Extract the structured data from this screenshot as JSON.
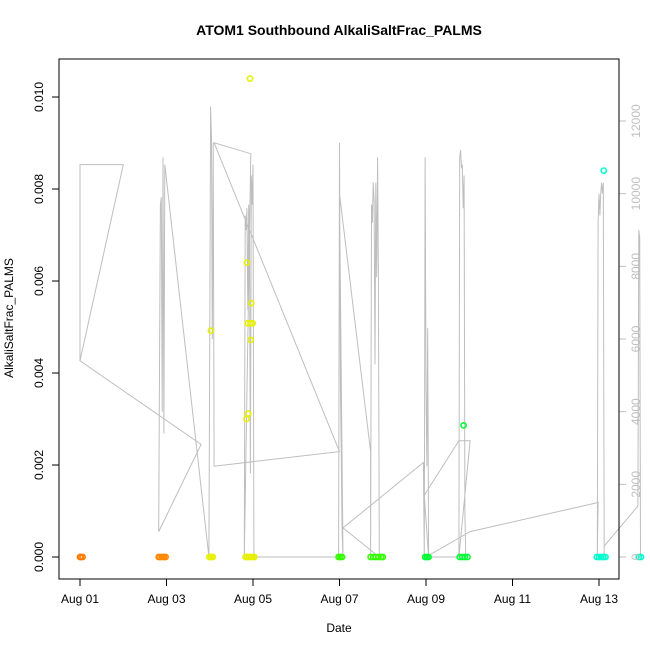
{
  "chart_data": {
    "type": "scatter",
    "title": "ATOM1 Southbound AlkaliSaltFrac_PALMS",
    "xlabel": "Date",
    "ylabel": "AlkaliSaltFrac_PALMS",
    "x_ticks": [
      "Aug 01",
      "Aug 03",
      "Aug 05",
      "Aug 07",
      "Aug 09",
      "Aug 11",
      "Aug 13"
    ],
    "y_ticks": [
      "0.000",
      "0.002",
      "0.004",
      "0.006",
      "0.008",
      "0.010"
    ],
    "y2_ticks": [
      "0",
      "2000",
      "4000",
      "6000",
      "8000",
      "10000",
      "12000"
    ],
    "xlim": [
      0.0,
      12.4
    ],
    "ylim": [
      0.0,
      0.0104
    ],
    "y2lim": [
      0,
      13000
    ],
    "grid": false,
    "colors": {
      "point_scale": [
        "#ff6600",
        "#ff8800",
        "#ffdd00",
        "#f0ff00",
        "#33ff00",
        "#00ff33",
        "#00ffcc"
      ],
      "altitude_line": "#bebebe"
    },
    "series": [
      {
        "type": "points",
        "color": "#ff7a00",
        "points": [
          [
            0.0,
            0.0
          ],
          [
            0.02,
            0.0
          ],
          [
            0.06,
            0.0
          ]
        ]
      },
      {
        "type": "points",
        "color": "#ff8800",
        "points": [
          [
            1.82,
            0.0
          ],
          [
            1.86,
            0.0
          ],
          [
            1.9,
            0.0
          ],
          [
            1.94,
            0.0
          ],
          [
            1.98,
            0.0
          ]
        ]
      },
      {
        "type": "points",
        "color": "#e6f000",
        "points": [
          [
            2.99,
            0.0
          ],
          [
            3.03,
            0.0
          ],
          [
            3.07,
            0.0
          ],
          [
            3.03,
            0.00492
          ],
          [
            3.83,
            0.0
          ],
          [
            3.87,
            0.0
          ],
          [
            3.91,
            0.0
          ],
          [
            3.95,
            0.0
          ],
          [
            3.99,
            0.0
          ],
          [
            4.03,
            0.0
          ],
          [
            3.86,
            0.0064
          ],
          [
            3.93,
            0.0104
          ],
          [
            3.96,
            0.00552
          ],
          [
            3.88,
            0.00508
          ],
          [
            3.94,
            0.00508
          ],
          [
            3.99,
            0.00508
          ],
          [
            3.95,
            0.00472
          ],
          [
            3.85,
            0.003
          ],
          [
            3.89,
            0.00312
          ]
        ]
      },
      {
        "type": "points",
        "color": "#33ff00",
        "points": [
          [
            5.98,
            0.0
          ],
          [
            6.02,
            0.0
          ],
          [
            6.06,
            0.0
          ],
          [
            6.72,
            0.0
          ],
          [
            6.78,
            0.0
          ],
          [
            6.84,
            0.0
          ],
          [
            6.9,
            0.0
          ],
          [
            6.96,
            0.0
          ],
          [
            7.0,
            0.0
          ]
        ]
      },
      {
        "type": "points",
        "color": "#00ff33",
        "points": [
          [
            7.98,
            0.0
          ],
          [
            8.02,
            0.0
          ],
          [
            8.06,
            0.0
          ],
          [
            8.78,
            0.0
          ],
          [
            8.84,
            0.0
          ],
          [
            8.9,
            0.0
          ],
          [
            8.96,
            0.0
          ],
          [
            8.87,
            0.00286
          ]
        ]
      },
      {
        "type": "points",
        "color": "#00ffcc",
        "points": [
          [
            11.95,
            0.0
          ],
          [
            12.0,
            0.0
          ],
          [
            12.05,
            0.0
          ],
          [
            12.1,
            0.0
          ],
          [
            12.15,
            0.0
          ],
          [
            12.11,
            0.0084
          ],
          [
            12.92,
            0.0
          ],
          [
            12.97,
            0.0
          ]
        ]
      }
    ],
    "altitude": {
      "color": "#bebebe",
      "points": [
        [
          0.0,
          5400
        ],
        [
          0.0,
          10800
        ],
        [
          1.0,
          10800
        ],
        [
          1.0,
          10800
        ],
        [
          0.0,
          5400
        ],
        [
          2.8,
          3100
        ],
        [
          1.82,
          700
        ],
        [
          1.84,
          5700
        ],
        [
          1.86,
          9700
        ],
        [
          1.88,
          9900
        ],
        [
          1.9,
          4000
        ],
        [
          1.92,
          11000
        ],
        [
          1.94,
          3400
        ],
        [
          1.96,
          10800
        ],
        [
          2.98,
          0
        ],
        [
          3.0,
          6400
        ],
        [
          3.02,
          12400
        ],
        [
          3.04,
          11500
        ],
        [
          3.06,
          6000
        ],
        [
          3.08,
          11400
        ],
        [
          3.1,
          2500
        ],
        [
          3.1,
          2500
        ],
        [
          6.0,
          2900
        ],
        [
          6.0,
          2900
        ],
        [
          3.1,
          11400
        ],
        [
          3.95,
          11100
        ],
        [
          3.95,
          11100
        ],
        [
          3.8,
          0
        ],
        [
          3.82,
          9400
        ],
        [
          3.84,
          9000
        ],
        [
          3.86,
          9600
        ],
        [
          3.88,
          6800
        ],
        [
          3.9,
          9700
        ],
        [
          3.92,
          9000
        ],
        [
          3.94,
          2300
        ],
        [
          3.96,
          10500
        ],
        [
          3.98,
          9700
        ],
        [
          4.0,
          10800
        ],
        [
          4.02,
          0
        ],
        [
          5.98,
          0
        ],
        [
          6.0,
          11400
        ],
        [
          6.02,
          4800
        ],
        [
          6.04,
          3000
        ],
        [
          6.06,
          700
        ],
        [
          6.08,
          0
        ],
        [
          6.0,
          10000
        ],
        [
          6.72,
          2900
        ],
        [
          6.72,
          2900
        ],
        [
          6.72,
          0
        ],
        [
          6.74,
          9700
        ],
        [
          6.76,
          9200
        ],
        [
          6.78,
          10300
        ],
        [
          6.8,
          9800
        ],
        [
          6.82,
          5300
        ],
        [
          6.84,
          10300
        ],
        [
          6.86,
          7700
        ],
        [
          6.88,
          11000
        ],
        [
          6.9,
          7700
        ],
        [
          6.92,
          0
        ],
        [
          6.08,
          800
        ],
        [
          7.94,
          2600
        ],
        [
          7.94,
          2600
        ],
        [
          7.96,
          0
        ],
        [
          7.98,
          11000
        ],
        [
          8.0,
          4800
        ],
        [
          8.02,
          2500
        ],
        [
          8.04,
          6300
        ],
        [
          8.06,
          0
        ],
        [
          7.96,
          1700
        ],
        [
          8.76,
          3200
        ],
        [
          9.02,
          3200
        ],
        [
          8.76,
          0
        ],
        [
          8.78,
          11000
        ],
        [
          8.8,
          11200
        ],
        [
          8.82,
          10700
        ],
        [
          8.84,
          10800
        ],
        [
          8.86,
          9600
        ],
        [
          8.88,
          10500
        ],
        [
          8.9,
          1200
        ],
        [
          8.92,
          0
        ],
        [
          8.0,
          0
        ],
        [
          9.02,
          700
        ],
        [
          11.98,
          1500
        ],
        [
          11.98,
          1500
        ],
        [
          11.96,
          0
        ],
        [
          11.98,
          9200
        ],
        [
          12.0,
          10000
        ],
        [
          12.02,
          9400
        ],
        [
          12.04,
          10000
        ],
        [
          12.06,
          10300
        ],
        [
          12.08,
          10000
        ],
        [
          12.1,
          10300
        ],
        [
          12.12,
          0
        ],
        [
          12.12,
          300
        ],
        [
          12.9,
          1400
        ],
        [
          12.92,
          9000
        ],
        [
          12.94,
          8800
        ],
        [
          12.96,
          0
        ]
      ]
    }
  }
}
